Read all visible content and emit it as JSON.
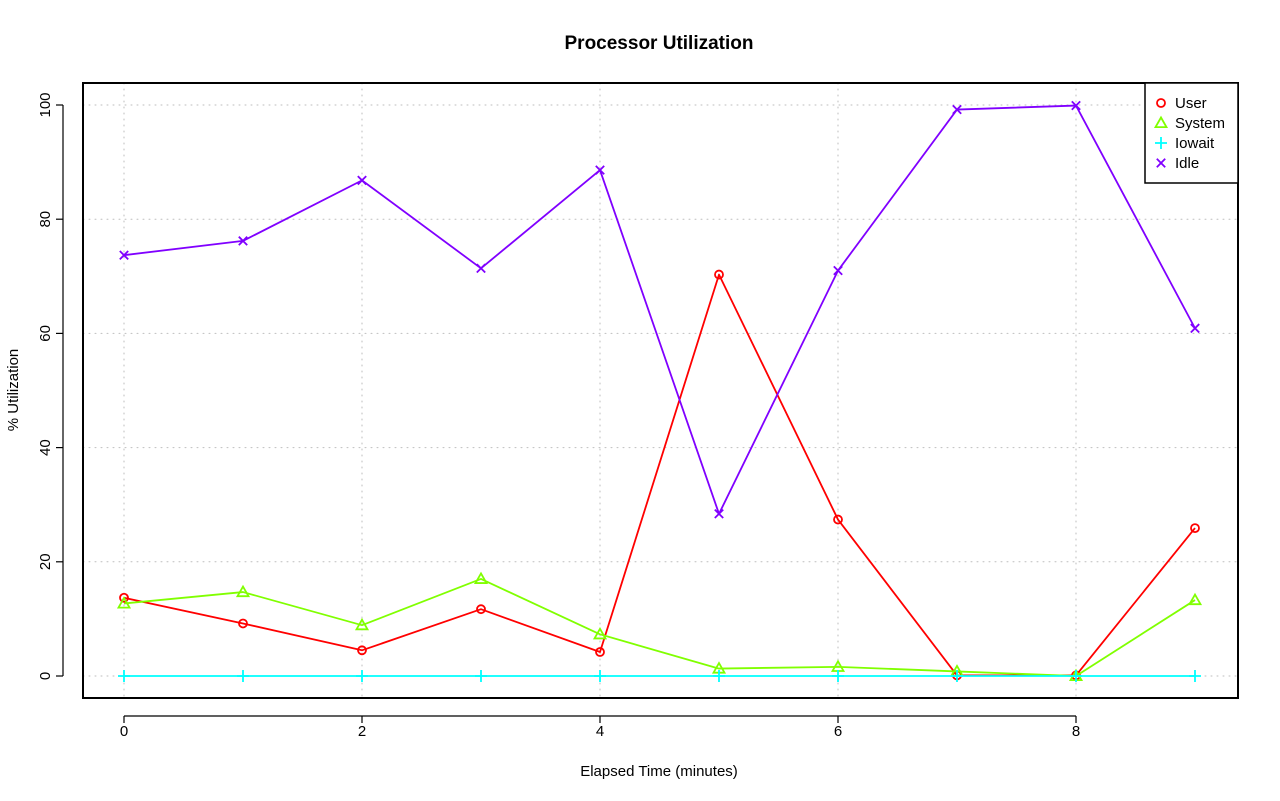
{
  "chart_data": {
    "type": "line",
    "title": "Processor Utilization",
    "xlabel": "Elapsed Time (minutes)",
    "ylabel": "% Utilization",
    "xlim": [
      0,
      9
    ],
    "ylim": [
      0,
      100
    ],
    "x_ticks": [
      0,
      2,
      4,
      6,
      8
    ],
    "y_ticks": [
      0,
      20,
      40,
      60,
      80,
      100
    ],
    "grid": true,
    "legend_position": "top-right",
    "x": [
      0,
      1,
      2,
      3,
      4,
      5,
      6,
      7,
      8,
      9
    ],
    "series": [
      {
        "name": "User",
        "color": "#ff0000",
        "marker": "circle",
        "values": [
          13.7,
          9.2,
          4.5,
          11.7,
          4.2,
          70.3,
          27.4,
          0.1,
          0.1,
          25.9
        ]
      },
      {
        "name": "System",
        "color": "#80ff00",
        "marker": "triangle",
        "values": [
          12.7,
          14.7,
          8.9,
          17.0,
          7.3,
          1.3,
          1.6,
          0.8,
          0.0,
          13.3
        ]
      },
      {
        "name": "Iowait",
        "color": "#00ffff",
        "marker": "plus",
        "values": [
          0,
          0,
          0,
          0,
          0,
          0,
          0,
          0,
          0,
          0
        ]
      },
      {
        "name": "Idle",
        "color": "#8000ff",
        "marker": "cross",
        "values": [
          73.7,
          76.2,
          86.8,
          71.4,
          88.6,
          28.4,
          71.0,
          99.2,
          99.9,
          60.9
        ]
      }
    ]
  }
}
